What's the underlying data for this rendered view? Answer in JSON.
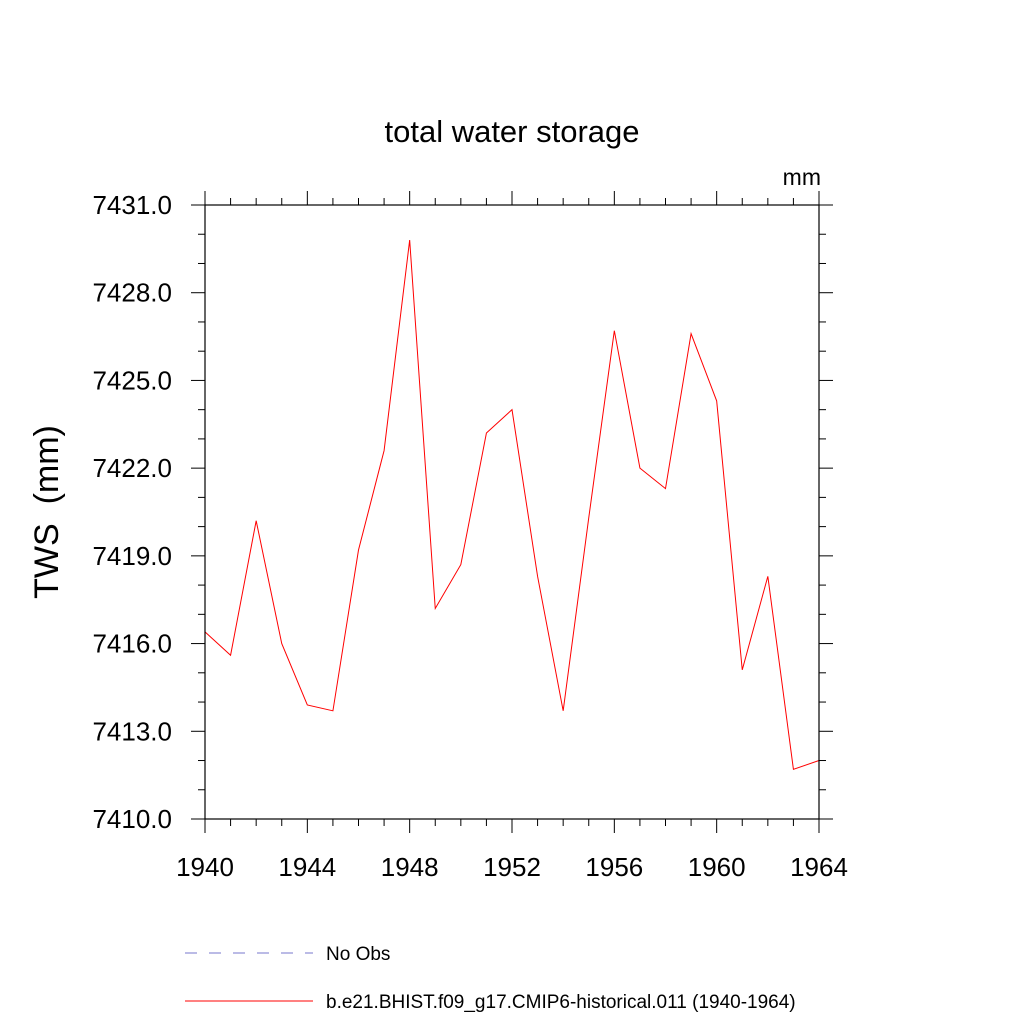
{
  "chart_data": {
    "type": "line",
    "title": "total water storage",
    "units_label": "mm",
    "ylabel": "TWS  (mm)",
    "xlabel": "",
    "xlim": [
      1940,
      1964
    ],
    "ylim": [
      7410.0,
      7431.0
    ],
    "x_ticks": [
      1940,
      1944,
      1948,
      1952,
      1956,
      1960,
      1964
    ],
    "y_ticks": [
      "7410.0",
      "7413.0",
      "7416.0",
      "7419.0",
      "7422.0",
      "7425.0",
      "7428.0",
      "7431.0"
    ],
    "x_minor_step": 1,
    "y_minor_step": 1,
    "grid": false,
    "legend_position": "bottom",
    "series": [
      {
        "name": "No Obs",
        "color": "#7777cc",
        "style": "dashed",
        "x": [],
        "values": []
      },
      {
        "name": "b.e21.BHIST.f09_g17.CMIP6-historical.011 (1940-1964)",
        "color": "#ff0000",
        "style": "solid",
        "x": [
          1940,
          1941,
          1942,
          1943,
          1944,
          1945,
          1946,
          1947,
          1948,
          1949,
          1950,
          1951,
          1952,
          1953,
          1954,
          1955,
          1956,
          1957,
          1958,
          1959,
          1960,
          1961,
          1962,
          1963,
          1964
        ],
        "values": [
          7416.4,
          7415.6,
          7420.2,
          7416.0,
          7413.9,
          7413.7,
          7419.2,
          7422.6,
          7429.8,
          7417.2,
          7418.7,
          7423.2,
          7424.0,
          7418.3,
          7413.7,
          7420.3,
          7426.7,
          7422.0,
          7421.3,
          7426.6,
          7424.3,
          7415.1,
          7418.3,
          7411.7,
          7412.0
        ]
      }
    ]
  }
}
